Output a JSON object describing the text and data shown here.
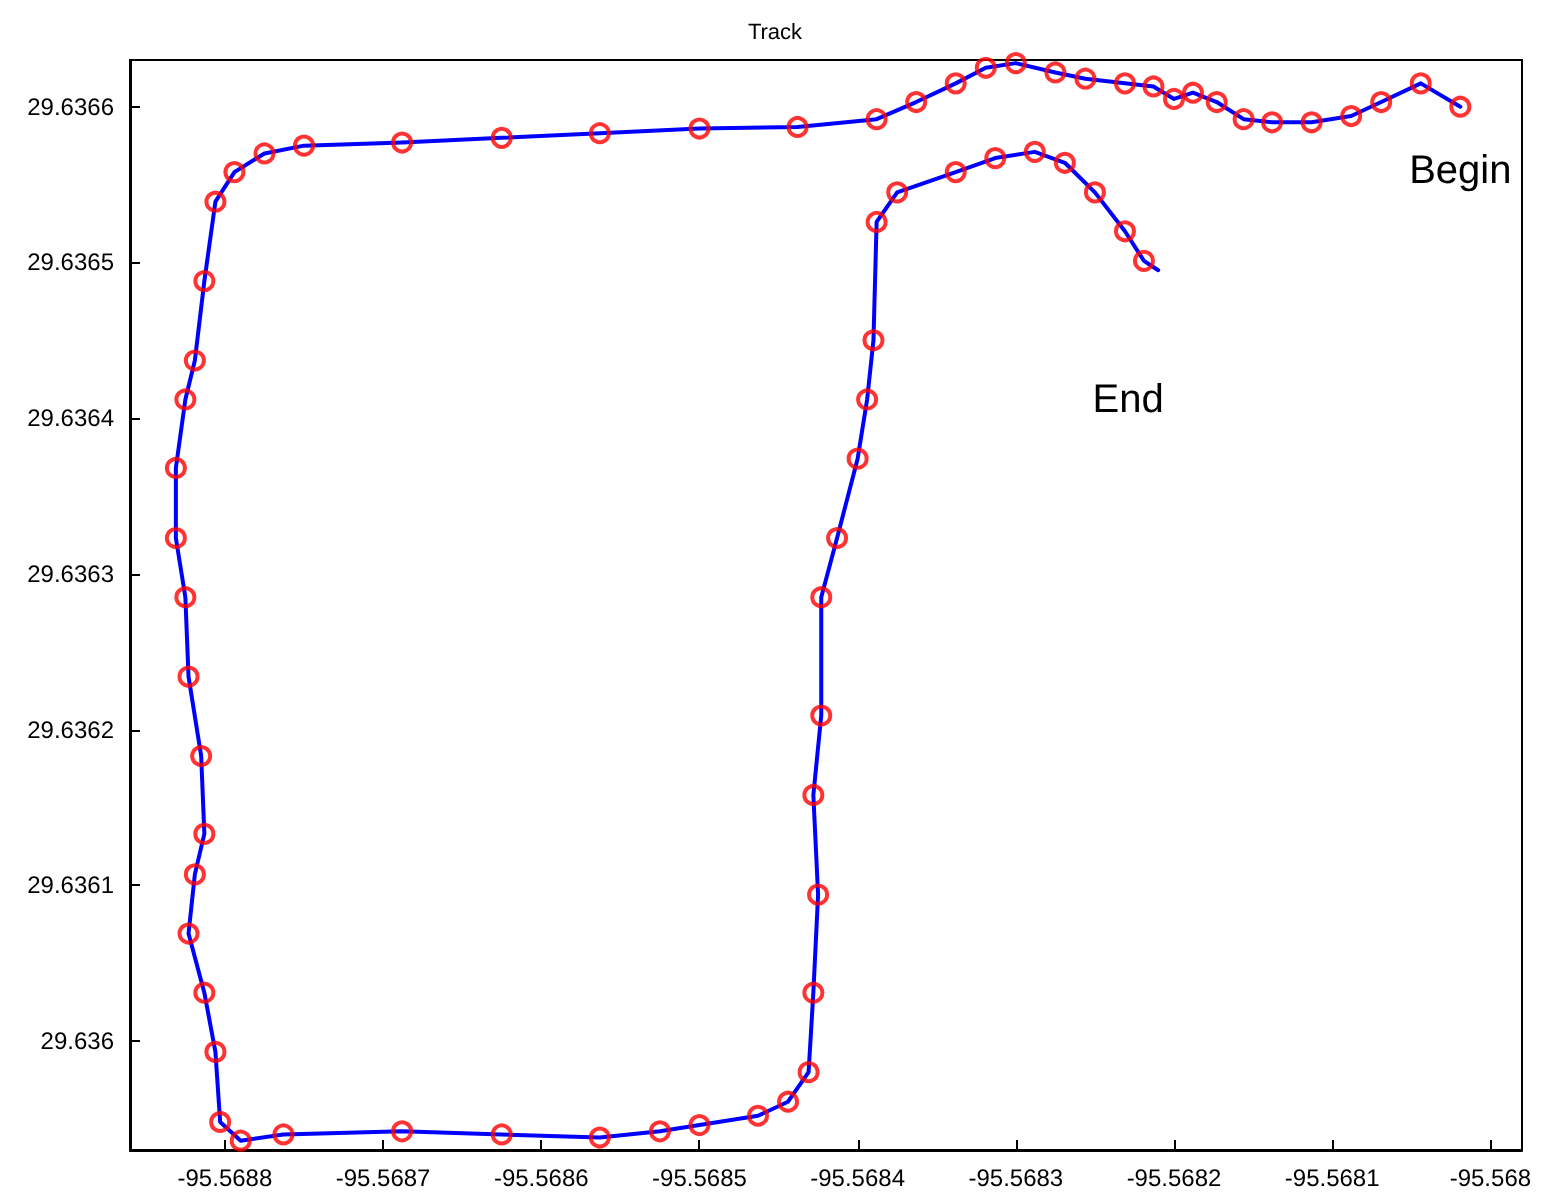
{
  "chart_data": {
    "type": "line",
    "title": "Track",
    "x": [
      -95.568019,
      -95.568044,
      -95.568069,
      -95.568088,
      -95.568113,
      -95.568138,
      -95.568156,
      -95.568173,
      -95.568188,
      -95.5682,
      -95.568213,
      -95.568231,
      -95.568256,
      -95.568275,
      -95.5683,
      -95.568319,
      -95.568338,
      -95.568363,
      -95.568388,
      -95.568438,
      -95.5685,
      -95.568563,
      -95.568625,
      -95.568688,
      -95.56875,
      -95.568775,
      -95.568794,
      -95.568806,
      -95.568813,
      -95.568819,
      -95.568825,
      -95.568831,
      -95.568831,
      -95.568825,
      -95.568823,
      -95.568815,
      -95.568813,
      -95.568819,
      -95.568823,
      -95.568813,
      -95.568806,
      -95.568803,
      -95.56879,
      -95.568763,
      -95.568688,
      -95.568625,
      -95.568563,
      -95.568525,
      -95.5685,
      -95.568463,
      -95.568444,
      -95.568431,
      -95.568428,
      -95.568425,
      -95.568428,
      -95.568423,
      -95.568423,
      -95.568413,
      -95.5684,
      -95.568394,
      -95.56839,
      -95.568388,
      -95.568375,
      -95.568338,
      -95.568313,
      -95.568288,
      -95.568269,
      -95.56825,
      -95.568231,
      -95.568219,
      -95.56821
    ],
    "series": [
      {
        "color": "#0000ff",
        "marker": "none",
        "values": [
          29.6366,
          29.636615,
          29.636603,
          29.636594,
          29.63659,
          29.63659,
          29.636592,
          29.636603,
          29.636609,
          29.636605,
          29.636613,
          29.636615,
          29.636618,
          29.636622,
          29.636628,
          29.636625,
          29.636615,
          29.636603,
          29.636592,
          29.636587,
          29.636586,
          29.636583,
          29.63658,
          29.636577,
          29.636575,
          29.63657,
          29.636558,
          29.636539,
          29.636488,
          29.636437,
          29.636412,
          29.636368,
          29.636323,
          29.636285,
          29.636234,
          29.636183,
          29.636133,
          29.636107,
          29.636069,
          29.636031,
          29.635993,
          29.635948,
          29.635936,
          29.63594,
          29.635942,
          29.63594,
          29.635938,
          29.635942,
          29.635946,
          29.635952,
          29.635961,
          29.63598,
          29.636031,
          29.636094,
          29.636158,
          29.636209,
          29.636285,
          29.636323,
          29.636374,
          29.636412,
          29.63645,
          29.636526,
          29.636545,
          29.636558,
          29.636567,
          29.636571,
          29.636564,
          29.636545,
          29.63652,
          29.636501,
          29.636495
        ]
      },
      {
        "type": "scatter",
        "color": "#ff0000",
        "marker": "circle",
        "values": [
          29.6366,
          29.636615,
          29.636603,
          29.636594,
          29.63659,
          29.63659,
          29.636592,
          29.636603,
          29.636609,
          29.636605,
          29.636613,
          29.636615,
          29.636618,
          29.636622,
          29.636628,
          29.636625,
          29.636615,
          29.636603,
          29.636592,
          29.636587,
          29.636586,
          29.636583,
          29.63658,
          29.636577,
          29.636575,
          29.63657,
          29.636558,
          29.636539,
          29.636488,
          29.636437,
          29.636412,
          29.636368,
          29.636323,
          29.636285,
          29.636234,
          29.636183,
          29.636133,
          29.636107,
          29.636069,
          29.636031,
          29.635993,
          29.635948,
          29.635936,
          29.63594,
          29.635942,
          29.63594,
          29.635938,
          29.635942,
          29.635946,
          29.635952,
          29.635961,
          29.63598,
          29.636031,
          29.636094,
          29.636158,
          29.636209,
          29.636285,
          29.636323,
          29.636374,
          29.636412,
          29.63645,
          29.636526,
          29.636545,
          29.636558,
          29.636567,
          29.636571,
          29.636564,
          29.636545,
          29.63652,
          29.636501,
          null
        ]
      }
    ],
    "xlim": [
      -95.56886,
      -95.56798
    ],
    "xticks": [
      -95.5688,
      -95.5687,
      -95.5686,
      -95.5685,
      -95.5684,
      -95.5683,
      -95.5682,
      -95.5681,
      -95.568
    ],
    "ylim": [
      29.63593,
      29.63663
    ],
    "yticks": [
      29.636,
      29.6361,
      29.6362,
      29.6363,
      29.6364,
      29.6365,
      29.6366
    ],
    "grid": false,
    "annotations": [
      "Begin",
      "End"
    ]
  }
}
